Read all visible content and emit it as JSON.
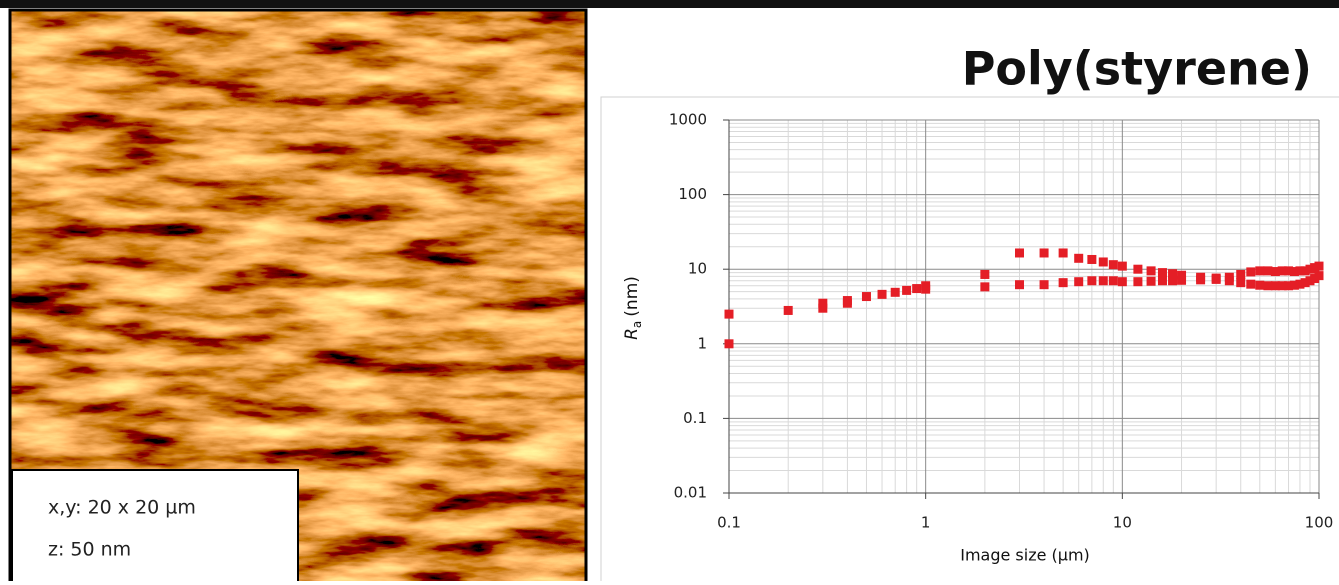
{
  "image_panel": {
    "label_xy": "x,y: 20 x 20 µm",
    "label_z": "z: 50 nm"
  },
  "chart_data": {
    "type": "scatter",
    "title": "Poly(styrene)",
    "xlabel": "Image size (µm)",
    "ylabel": "R",
    "ylabel_subscript": "a",
    "ylabel_unit": "(nm)",
    "xscale": "log",
    "yscale": "log",
    "grid": true,
    "minor_grid": true,
    "color": "#e41e26",
    "xlim": [
      0.1,
      100
    ],
    "ylim": [
      0.01,
      1000
    ],
    "xticks": [
      0.1,
      1,
      10,
      100
    ],
    "yticks": [
      0.01,
      0.1,
      1,
      10,
      100,
      1000
    ],
    "x": [
      0.1,
      0.1,
      0.2,
      0.3,
      0.3,
      0.4,
      0.4,
      0.5,
      0.6,
      0.7,
      0.8,
      0.9,
      1,
      1,
      2,
      2,
      3,
      3,
      4,
      4,
      5,
      5,
      6,
      6,
      7,
      7,
      8,
      8,
      9,
      9,
      10,
      12,
      14,
      16,
      18,
      20,
      25,
      30,
      35,
      40,
      45,
      50,
      55,
      60,
      65,
      70,
      75,
      80,
      85,
      90,
      95,
      100,
      10,
      12,
      14,
      16,
      18,
      20,
      25,
      30,
      35,
      40,
      45,
      50,
      55,
      60,
      65,
      70,
      75,
      80,
      85,
      90,
      95,
      100
    ],
    "y": [
      2.5,
      1.0,
      2.8,
      3.5,
      3.0,
      3.8,
      3.5,
      4.3,
      4.6,
      4.9,
      5.2,
      5.5,
      6.0,
      5.4,
      8.5,
      5.8,
      16.5,
      6.2,
      16.5,
      6.2,
      16.5,
      6.6,
      14,
      6.8,
      13.5,
      7.0,
      12.5,
      7.0,
      11.5,
      7.0,
      11,
      10,
      9.5,
      9,
      8.7,
      8.3,
      7.8,
      7.6,
      7.8,
      8.5,
      9.2,
      9.5,
      9.5,
      9.3,
      9.5,
      9.5,
      9.3,
      9.5,
      9.5,
      10,
      10.5,
      11,
      6.8,
      6.8,
      6.9,
      7,
      7,
      7.1,
      7.2,
      7.3,
      7.0,
      6.6,
      6.3,
      6.1,
      6.0,
      6.0,
      6.0,
      6.0,
      6.1,
      6.3,
      6.6,
      7,
      7.5,
      8.2
    ]
  }
}
